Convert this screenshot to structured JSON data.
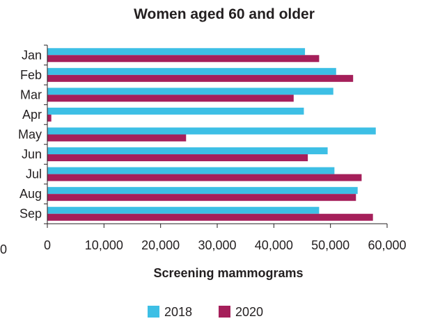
{
  "colors": {
    "s2018": "#3dbfe5",
    "s2020": "#a51f5a",
    "axis": "#231f20",
    "text": "#231f20"
  },
  "chart_data": {
    "type": "bar",
    "orientation": "horizontal",
    "title": "Women aged 60 and older",
    "xlabel": "Screening mammograms",
    "ylabel": "",
    "categories": [
      "Jan",
      "Feb",
      "Mar",
      "Apr",
      "May",
      "Jun",
      "Jul",
      "Aug",
      "Sep"
    ],
    "series": [
      {
        "name": "2018",
        "values": [
          45500,
          51000,
          50500,
          45300,
          58000,
          49500,
          50700,
          54800,
          48000
        ]
      },
      {
        "name": "2020",
        "values": [
          48000,
          54000,
          43500,
          700,
          24500,
          46000,
          55500,
          54500,
          57500
        ]
      }
    ],
    "xlim": [
      0,
      60000
    ],
    "xticks": [
      {
        "value": 0,
        "label": "0"
      },
      {
        "value": 10000,
        "label": "10,000"
      },
      {
        "value": 20000,
        "label": "20,000"
      },
      {
        "value": 30000,
        "label": "30,000"
      },
      {
        "value": 40000,
        "label": "40,000"
      },
      {
        "value": 50000,
        "label": "50,000"
      },
      {
        "value": 60000,
        "label": "60,000"
      }
    ],
    "extra_tick_label": "0",
    "grid": false,
    "legend_position": "bottom"
  }
}
